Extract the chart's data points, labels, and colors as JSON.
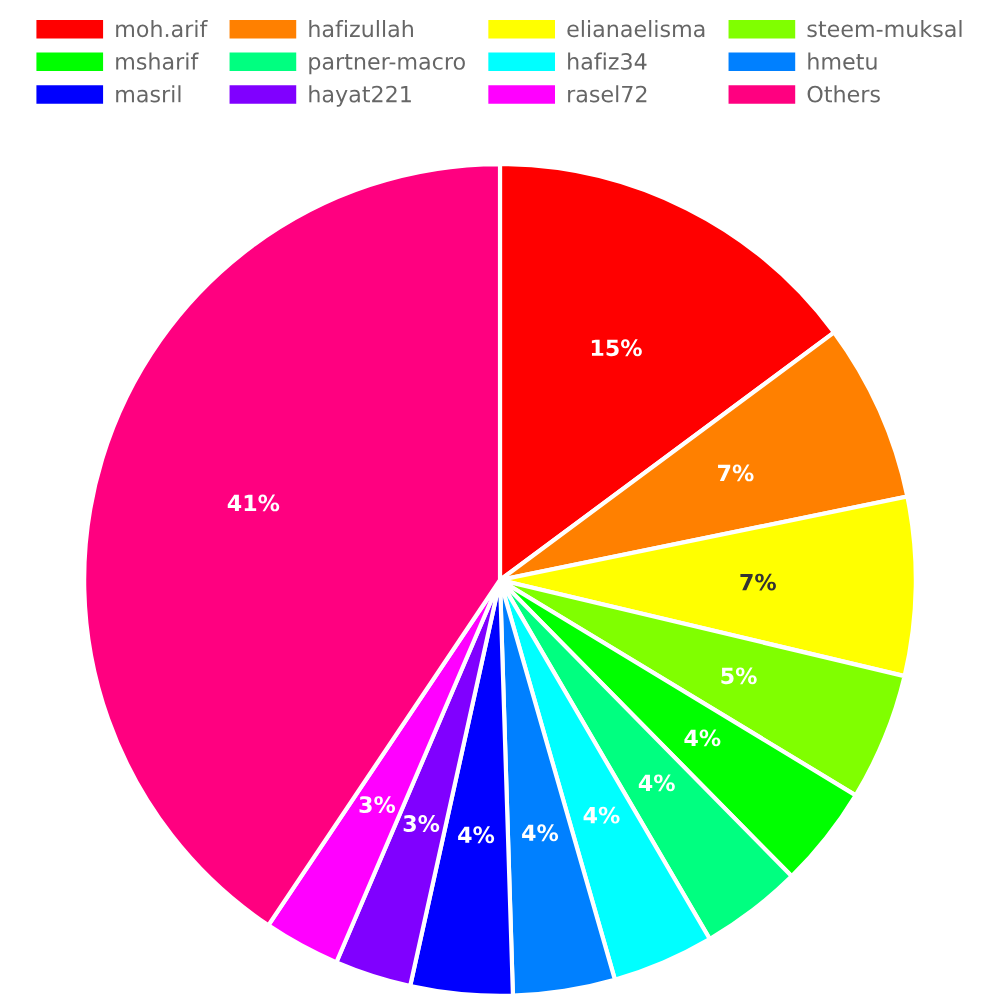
{
  "chart_data": {
    "type": "pie",
    "categories": [
      "moh.arif",
      "hafizullah",
      "elianaelisma",
      "steem-muksal",
      "msharif",
      "partner-macro",
      "hafiz34",
      "hmetu",
      "masril",
      "hayat221",
      "rasel72",
      "Others"
    ],
    "values": [
      15,
      7,
      7,
      5,
      4,
      4,
      4,
      4,
      4,
      3,
      3,
      41
    ],
    "colors": [
      "#ff0000",
      "#ff8000",
      "#ffff00",
      "#80ff00",
      "#00ff00",
      "#00ff80",
      "#00ffff",
      "#0080ff",
      "#0000ff",
      "#8000ff",
      "#ff00ff",
      "#ff0080"
    ],
    "value_labels": [
      "15%",
      "7%",
      "7%",
      "5%",
      "4%",
      "4%",
      "4%",
      "4%",
      "4%",
      "3%",
      "3%",
      "41%"
    ],
    "legend": "top"
  }
}
